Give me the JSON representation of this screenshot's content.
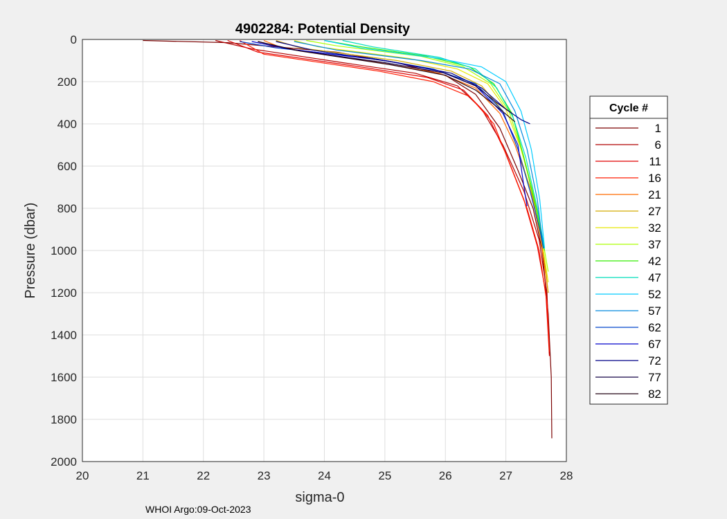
{
  "chart_data": {
    "type": "line",
    "title": "4902284: Potential Density",
    "xlabel": "sigma-0",
    "ylabel": "Pressure (dbar)",
    "xlim": [
      20,
      28
    ],
    "ylim": [
      0,
      2000
    ],
    "y_reversed": true,
    "grid": true,
    "xticks": [
      "20",
      "21",
      "22",
      "23",
      "24",
      "25",
      "26",
      "27",
      "28"
    ],
    "yticks": [
      "0",
      "200",
      "400",
      "600",
      "800",
      "1000",
      "1200",
      "1400",
      "1600",
      "1800",
      "2000"
    ],
    "legend_title": "Cycle #",
    "legend_placement": "outside-right",
    "series": [
      {
        "name": "1",
        "color": "#7a0000",
        "points": [
          [
            21.0,
            5
          ],
          [
            22.4,
            15
          ],
          [
            24.2,
            60
          ],
          [
            25.2,
            110
          ],
          [
            26.0,
            170
          ],
          [
            26.5,
            260
          ],
          [
            26.9,
            420
          ],
          [
            27.2,
            620
          ],
          [
            27.45,
            800
          ],
          [
            27.6,
            1000
          ],
          [
            27.7,
            1300
          ],
          [
            27.75,
            1600
          ],
          [
            27.76,
            1890
          ]
        ]
      },
      {
        "name": "6",
        "color": "#b00000",
        "points": [
          [
            22.2,
            5
          ],
          [
            22.8,
            45
          ],
          [
            24.3,
            110
          ],
          [
            25.5,
            160
          ],
          [
            26.2,
            220
          ],
          [
            26.6,
            330
          ],
          [
            26.95,
            500
          ],
          [
            27.3,
            720
          ],
          [
            27.55,
            950
          ],
          [
            27.68,
            1200
          ],
          [
            27.72,
            1490
          ]
        ]
      },
      {
        "name": "11",
        "color": "#e00000",
        "points": [
          [
            22.4,
            5
          ],
          [
            22.9,
            60
          ],
          [
            24.6,
            130
          ],
          [
            25.7,
            180
          ],
          [
            26.3,
            240
          ],
          [
            26.7,
            360
          ],
          [
            27.0,
            540
          ],
          [
            27.3,
            760
          ],
          [
            27.52,
            980
          ],
          [
            27.66,
            1200
          ],
          [
            27.72,
            1500
          ]
        ]
      },
      {
        "name": "16",
        "color": "#ff1a00",
        "points": [
          [
            22.6,
            5
          ],
          [
            23.0,
            70
          ],
          [
            24.9,
            150
          ],
          [
            25.8,
            200
          ],
          [
            26.4,
            270
          ],
          [
            26.8,
            400
          ],
          [
            27.05,
            580
          ],
          [
            27.35,
            800
          ],
          [
            27.55,
            1000
          ],
          [
            27.68,
            1250
          ],
          [
            27.72,
            1480
          ]
        ]
      },
      {
        "name": "21",
        "color": "#ff6a00",
        "points": [
          [
            23.0,
            5
          ],
          [
            23.3,
            40
          ],
          [
            24.9,
            110
          ],
          [
            25.9,
            160
          ],
          [
            26.5,
            230
          ],
          [
            26.9,
            350
          ],
          [
            27.15,
            500
          ],
          [
            27.4,
            700
          ],
          [
            27.58,
            950
          ],
          [
            27.7,
            1200
          ]
        ]
      },
      {
        "name": "27",
        "color": "#d4aa00",
        "points": [
          [
            23.2,
            5
          ],
          [
            23.6,
            40
          ],
          [
            25.2,
            100
          ],
          [
            26.1,
            150
          ],
          [
            26.6,
            220
          ],
          [
            26.95,
            340
          ],
          [
            27.2,
            520
          ],
          [
            27.45,
            750
          ],
          [
            27.62,
            1000
          ],
          [
            27.7,
            1200
          ]
        ]
      },
      {
        "name": "32",
        "color": "#e8e800",
        "points": [
          [
            23.5,
            5
          ],
          [
            23.9,
            35
          ],
          [
            25.4,
            90
          ],
          [
            26.2,
            140
          ],
          [
            26.7,
            210
          ],
          [
            27.0,
            330
          ],
          [
            27.25,
            520
          ],
          [
            27.48,
            760
          ],
          [
            27.62,
            1000
          ],
          [
            27.7,
            1150
          ]
        ]
      },
      {
        "name": "37",
        "color": "#aaff00",
        "points": [
          [
            23.7,
            5
          ],
          [
            24.2,
            30
          ],
          [
            25.6,
            80
          ],
          [
            26.3,
            130
          ],
          [
            26.75,
            210
          ],
          [
            27.05,
            340
          ],
          [
            27.28,
            540
          ],
          [
            27.5,
            780
          ],
          [
            27.64,
            1000
          ],
          [
            27.7,
            1100
          ]
        ]
      },
      {
        "name": "42",
        "color": "#33ee00",
        "points": [
          [
            24.0,
            5
          ],
          [
            24.5,
            30
          ],
          [
            25.7,
            80
          ],
          [
            26.4,
            130
          ],
          [
            26.8,
            210
          ],
          [
            27.1,
            350
          ],
          [
            27.3,
            560
          ],
          [
            27.5,
            800
          ],
          [
            27.64,
            1000
          ]
        ]
      },
      {
        "name": "47",
        "color": "#00ddbb",
        "points": [
          [
            24.3,
            5
          ],
          [
            24.8,
            35
          ],
          [
            25.9,
            85
          ],
          [
            26.5,
            140
          ],
          [
            26.85,
            230
          ],
          [
            27.12,
            370
          ],
          [
            27.33,
            560
          ],
          [
            27.52,
            800
          ],
          [
            27.64,
            990
          ]
        ]
      },
      {
        "name": "52",
        "color": "#00ccff",
        "points": [
          [
            24.0,
            5
          ],
          [
            24.6,
            40
          ],
          [
            25.9,
            90
          ],
          [
            26.6,
            130
          ],
          [
            27.0,
            200
          ],
          [
            27.25,
            340
          ],
          [
            27.42,
            520
          ],
          [
            27.56,
            760
          ],
          [
            27.64,
            990
          ]
        ]
      },
      {
        "name": "57",
        "color": "#0088dd",
        "points": [
          [
            23.5,
            10
          ],
          [
            24.2,
            50
          ],
          [
            25.6,
            100
          ],
          [
            26.4,
            140
          ],
          [
            26.9,
            210
          ],
          [
            27.15,
            340
          ],
          [
            27.35,
            520
          ],
          [
            27.52,
            760
          ],
          [
            27.62,
            990
          ]
        ]
      },
      {
        "name": "62",
        "color": "#0044cc",
        "points": [
          [
            22.6,
            10
          ],
          [
            23.2,
            40
          ],
          [
            24.8,
            90
          ],
          [
            25.8,
            140
          ],
          [
            26.5,
            210
          ],
          [
            26.95,
            340
          ],
          [
            27.2,
            520
          ],
          [
            27.4,
            720
          ],
          [
            27.56,
            900
          ],
          [
            27.62,
            990
          ]
        ]
      },
      {
        "name": "67",
        "color": "#0000cc",
        "points": [
          [
            22.8,
            10
          ],
          [
            23.4,
            45
          ],
          [
            25.0,
            100
          ],
          [
            25.9,
            150
          ],
          [
            26.5,
            220
          ],
          [
            26.95,
            350
          ],
          [
            27.2,
            500
          ],
          [
            27.3,
            700
          ],
          [
            27.35,
            790
          ]
        ]
      },
      {
        "name": "72",
        "color": "#000088",
        "points": [
          [
            23.2,
            10
          ],
          [
            23.8,
            50
          ],
          [
            25.2,
            110
          ],
          [
            26.1,
            160
          ],
          [
            26.6,
            230
          ],
          [
            27.0,
            330
          ],
          [
            27.25,
            380
          ],
          [
            27.4,
            400
          ]
        ]
      },
      {
        "name": "77",
        "color": "#110044",
        "points": [
          [
            22.9,
            10
          ],
          [
            23.5,
            50
          ],
          [
            25.0,
            110
          ],
          [
            26.0,
            160
          ],
          [
            26.5,
            220
          ],
          [
            26.85,
            300
          ],
          [
            27.1,
            350
          ]
        ]
      },
      {
        "name": "82",
        "color": "#220011",
        "points": [
          [
            22.9,
            10
          ],
          [
            23.6,
            55
          ],
          [
            25.1,
            120
          ],
          [
            26.0,
            170
          ],
          [
            26.5,
            240
          ],
          [
            26.9,
            330
          ],
          [
            27.15,
            390
          ]
        ]
      }
    ]
  },
  "footer": "WHOI Argo:09-Oct-2023"
}
